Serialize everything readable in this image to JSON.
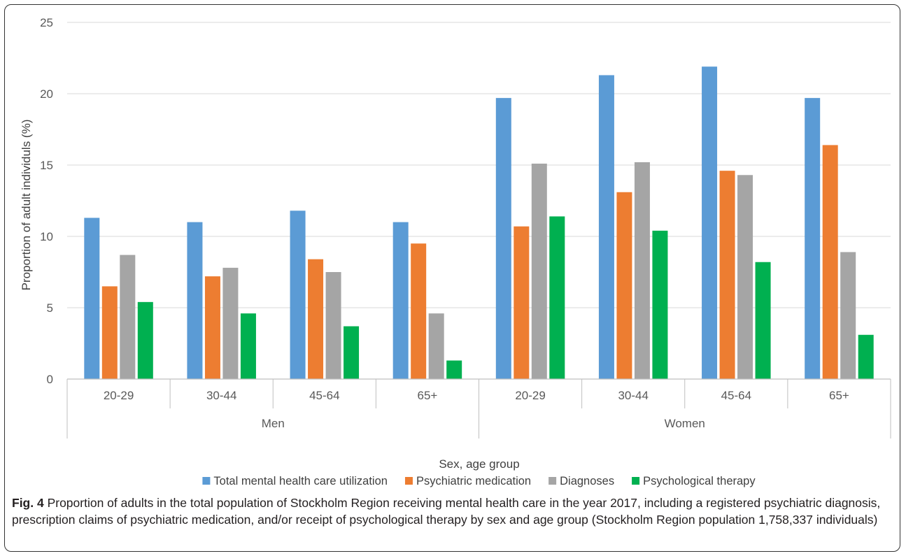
{
  "chart_data": {
    "type": "bar",
    "title": "",
    "xlabel": "Sex, age group",
    "ylabel": "Proportion of adult individuls (%)",
    "ylim": [
      0,
      25
    ],
    "yticks": [
      0,
      5,
      10,
      15,
      20,
      25
    ],
    "grid": true,
    "legend_position": "bottom",
    "groups": [
      {
        "label": "Men",
        "categories": [
          "20-29",
          "30-44",
          "45-64",
          "65+"
        ]
      },
      {
        "label": "Women",
        "categories": [
          "20-29",
          "30-44",
          "45-64",
          "65+"
        ]
      }
    ],
    "categories": [
      "20-29",
      "30-44",
      "45-64",
      "65+",
      "20-29",
      "30-44",
      "45-64",
      "65+"
    ],
    "series": [
      {
        "name": "Total mental health care utilization",
        "color": "#5b9bd5",
        "values": [
          11.3,
          11.0,
          11.8,
          11.0,
          19.7,
          21.3,
          21.9,
          19.7
        ]
      },
      {
        "name": "Psychiatric medication",
        "color": "#ed7d31",
        "values": [
          6.5,
          7.2,
          8.4,
          9.5,
          10.7,
          13.1,
          14.6,
          16.4
        ]
      },
      {
        "name": "Diagnoses",
        "color": "#a5a5a5",
        "values": [
          8.7,
          7.8,
          7.5,
          4.6,
          15.1,
          15.2,
          14.3,
          8.9
        ]
      },
      {
        "name": "Psychological therapy",
        "color": "#00b050",
        "values": [
          5.4,
          4.6,
          3.7,
          1.3,
          11.4,
          10.4,
          8.2,
          3.1
        ]
      }
    ]
  },
  "caption": {
    "label": "Fig. 4",
    "text": " Proportion of adults in the total population of Stockholm Region receiving mental health care in the year 2017, including a registered psychiatric diagnosis, prescription claims of psychiatric medication, and/or receipt of psychological therapy by sex and age group (Stockholm Region population 1,758,337 individuals)"
  }
}
